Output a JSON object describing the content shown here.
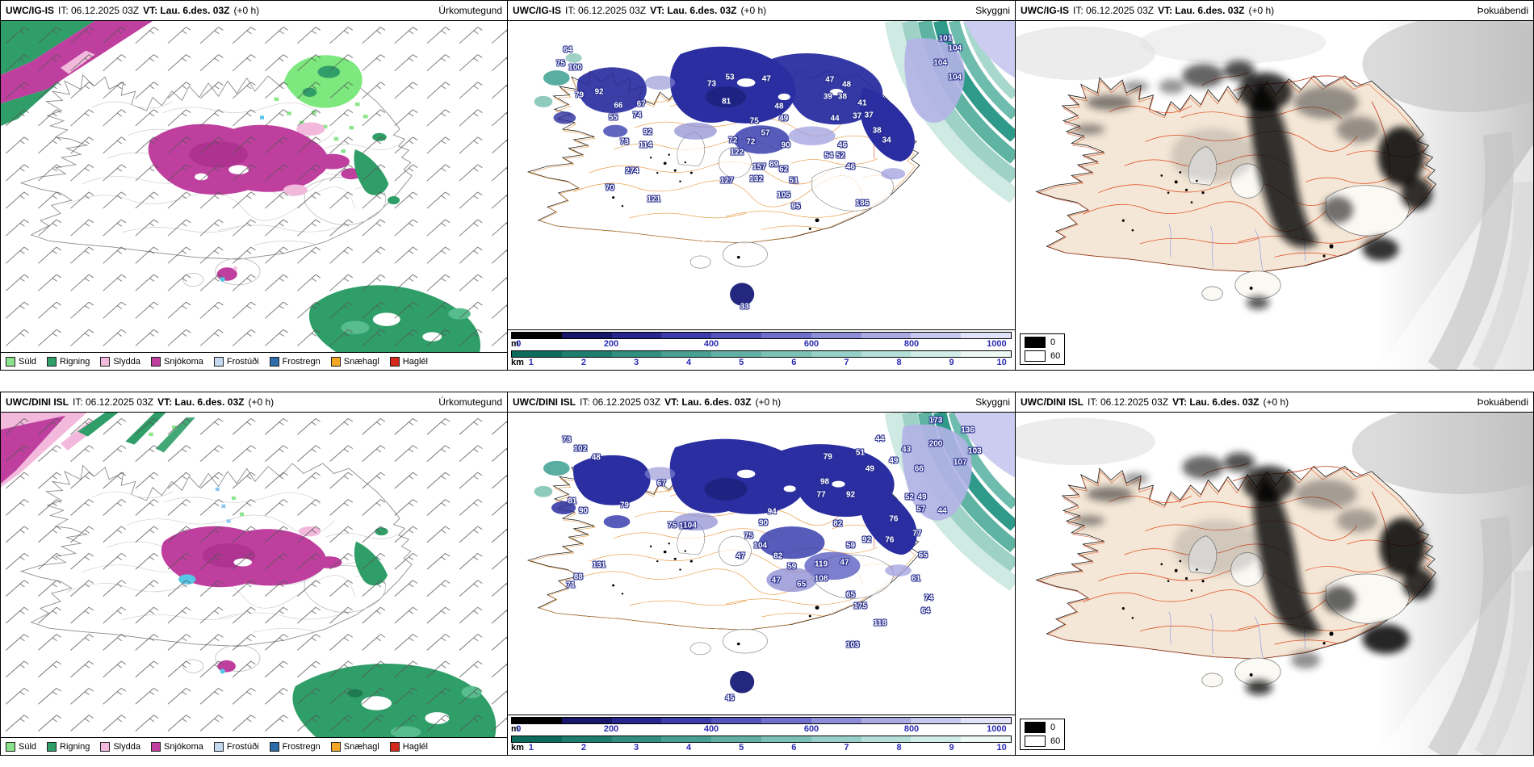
{
  "panels": [
    {
      "key": "precip-igis",
      "model": "UWC/IG-IS",
      "it_text": "IT: 06.12.2025 03Z",
      "vt_text": "VT: Lau. 6.des. 03Z",
      "offset_text": "(+0 h)",
      "product": "Úrkomutegund"
    },
    {
      "key": "vis-igis",
      "model": "UWC/IG-IS",
      "it_text": "IT: 06.12.2025 03Z",
      "vt_text": "VT: Lau. 6.des. 03Z",
      "offset_text": "(+0 h)",
      "product": "Skyggni",
      "stations": [
        [
          11.8,
          9.4,
          "64"
        ],
        [
          10.4,
          13.8,
          "75"
        ],
        [
          13.3,
          15.1,
          "100"
        ],
        [
          18.0,
          23.0,
          "92"
        ],
        [
          14.1,
          24.2,
          "79"
        ],
        [
          21.8,
          27.4,
          "66"
        ],
        [
          20.8,
          31.4,
          "55"
        ],
        [
          26.3,
          27.0,
          "67"
        ],
        [
          25.5,
          30.5,
          "74"
        ],
        [
          27.6,
          36.2,
          "92"
        ],
        [
          23.0,
          39.3,
          "73"
        ],
        [
          27.2,
          40.3,
          "114"
        ],
        [
          24.5,
          48.7,
          "274"
        ],
        [
          20.1,
          54.1,
          "70"
        ],
        [
          28.8,
          57.9,
          "121"
        ],
        [
          43.8,
          18.2,
          "53"
        ],
        [
          40.2,
          20.4,
          "73"
        ],
        [
          43.1,
          26.1,
          "81"
        ],
        [
          51.0,
          18.9,
          "47"
        ],
        [
          53.5,
          27.7,
          "48"
        ],
        [
          54.4,
          31.8,
          "49"
        ],
        [
          48.6,
          32.4,
          "75"
        ],
        [
          44.4,
          38.7,
          "72"
        ],
        [
          47.9,
          39.3,
          "72"
        ],
        [
          45.2,
          42.8,
          "122"
        ],
        [
          43.2,
          51.9,
          "127"
        ],
        [
          49.6,
          47.5,
          "157"
        ],
        [
          49.0,
          51.3,
          "132"
        ],
        [
          54.4,
          48.1,
          "62"
        ],
        [
          56.4,
          51.9,
          "51"
        ],
        [
          54.4,
          56.6,
          "105"
        ],
        [
          56.8,
          60.1,
          "95"
        ],
        [
          50.8,
          36.5,
          "57"
        ],
        [
          54.8,
          40.3,
          "90"
        ],
        [
          52.5,
          46.5,
          "89"
        ],
        [
          63.1,
          24.5,
          "39"
        ],
        [
          66.0,
          24.5,
          "38"
        ],
        [
          69.9,
          26.7,
          "41"
        ],
        [
          68.9,
          30.8,
          "37"
        ],
        [
          72.8,
          35.5,
          "38"
        ],
        [
          64.5,
          31.8,
          "44"
        ],
        [
          63.3,
          43.7,
          "54"
        ],
        [
          65.6,
          43.7,
          "52"
        ],
        [
          66.0,
          40.3,
          "46"
        ],
        [
          67.6,
          47.5,
          "46"
        ],
        [
          63.5,
          19.2,
          "47"
        ],
        [
          66.8,
          20.8,
          "48"
        ],
        [
          69.9,
          59.1,
          "186"
        ],
        [
          86.3,
          5.7,
          "101"
        ],
        [
          88.2,
          8.8,
          "104"
        ],
        [
          85.3,
          13.5,
          "104"
        ],
        [
          88.2,
          18.2,
          "104"
        ],
        [
          46.7,
          92.8,
          "33"
        ],
        [
          71.2,
          30.5,
          "37"
        ],
        [
          74.7,
          38.7,
          "34"
        ]
      ]
    },
    {
      "key": "fog-igis",
      "model": "UWC/IG-IS",
      "it_text": "IT: 06.12.2025 03Z",
      "vt_text": "VT: Lau. 6.des. 03Z",
      "offset_text": "(+0 h)",
      "product": "Þokuábendi"
    },
    {
      "key": "precip-dini",
      "model": "UWC/DINI ISL",
      "it_text": "IT: 06.12.2025 03Z",
      "vt_text": "VT: Lau. 6.des. 03Z",
      "offset_text": "(+0 h)",
      "product": "Úrkomutegund"
    },
    {
      "key": "vis-dini",
      "model": "UWC/DINI ISL",
      "it_text": "IT: 06.12.2025 03Z",
      "vt_text": "VT: Lau. 6.des. 03Z",
      "offset_text": "(+0 h)",
      "product": "Skyggni",
      "stations": [
        [
          11.6,
          9.0,
          "73"
        ],
        [
          14.3,
          11.9,
          "102"
        ],
        [
          17.4,
          15.1,
          "48"
        ],
        [
          30.3,
          23.4,
          "67"
        ],
        [
          12.7,
          29.5,
          "81"
        ],
        [
          23.0,
          30.8,
          "79"
        ],
        [
          14.9,
          32.7,
          "90"
        ],
        [
          35.1,
          37.8,
          "105"
        ],
        [
          32.4,
          37.5,
          "75"
        ],
        [
          35.9,
          37.5,
          "104"
        ],
        [
          18.0,
          50.6,
          "131"
        ],
        [
          13.9,
          54.5,
          "88"
        ],
        [
          12.4,
          57.1,
          "71"
        ],
        [
          63.1,
          14.7,
          "79"
        ],
        [
          62.5,
          23.1,
          "98"
        ],
        [
          61.8,
          27.2,
          "77"
        ],
        [
          67.6,
          27.2,
          "92"
        ],
        [
          65.1,
          36.9,
          "82"
        ],
        [
          67.6,
          44.2,
          "59"
        ],
        [
          66.4,
          49.7,
          "47"
        ],
        [
          61.8,
          50.3,
          "119"
        ],
        [
          61.8,
          55.1,
          "108"
        ],
        [
          67.6,
          60.3,
          "65"
        ],
        [
          69.5,
          64.1,
          "175"
        ],
        [
          73.4,
          69.9,
          "118"
        ],
        [
          68.0,
          76.9,
          "103"
        ],
        [
          43.8,
          94.6,
          "45"
        ],
        [
          84.4,
          2.6,
          "173"
        ],
        [
          90.7,
          5.8,
          "136"
        ],
        [
          84.4,
          10.3,
          "200"
        ],
        [
          92.1,
          12.8,
          "103"
        ],
        [
          89.2,
          16.7,
          "107"
        ],
        [
          69.5,
          13.5,
          "51"
        ],
        [
          73.4,
          8.7,
          "44"
        ],
        [
          78.6,
          12.2,
          "43"
        ],
        [
          76.1,
          16.0,
          "49"
        ],
        [
          81.1,
          18.6,
          "66"
        ],
        [
          71.4,
          18.6,
          "49"
        ],
        [
          79.2,
          28.2,
          "52"
        ],
        [
          81.7,
          28.2,
          "49"
        ],
        [
          81.5,
          32.1,
          "57"
        ],
        [
          85.7,
          32.7,
          "44"
        ],
        [
          76.1,
          35.3,
          "76"
        ],
        [
          80.7,
          40.1,
          "77"
        ],
        [
          75.3,
          42.3,
          "76"
        ],
        [
          81.9,
          47.4,
          "65"
        ],
        [
          80.5,
          55.1,
          "61"
        ],
        [
          83.0,
          61.5,
          "74"
        ],
        [
          82.4,
          65.7,
          "64"
        ],
        [
          70.8,
          42.3,
          "92"
        ],
        [
          52.1,
          33.0,
          "94"
        ],
        [
          50.4,
          36.5,
          "90"
        ],
        [
          47.5,
          41.0,
          "75"
        ],
        [
          49.8,
          44.0,
          "104"
        ],
        [
          53.3,
          47.6,
          "82"
        ],
        [
          56.0,
          51.0,
          "59"
        ],
        [
          45.9,
          47.5,
          "47"
        ],
        [
          52.9,
          55.5,
          "47"
        ],
        [
          57.9,
          57.0,
          "65"
        ]
      ]
    },
    {
      "key": "fog-dini",
      "model": "UWC/DINI ISL",
      "it_text": "IT: 06.12.2025 03Z",
      "vt_text": "VT: Lau. 6.des. 03Z",
      "offset_text": "(+0 h)",
      "product": "Þokuábendi"
    }
  ],
  "precip_legend": {
    "items": [
      {
        "label": "Súld",
        "color": "#8be08b"
      },
      {
        "label": "Rigning",
        "color": "#2f9e68"
      },
      {
        "label": "Slydda",
        "color": "#f2b9dc"
      },
      {
        "label": "Snjókoma",
        "color": "#bf3f9f"
      },
      {
        "label": "Frostúði",
        "color": "#c3d9f2"
      },
      {
        "label": "Frostregn",
        "color": "#2d6ca8"
      },
      {
        "label": "Snæhagl",
        "color": "#f5a627"
      },
      {
        "label": "Haglél",
        "color": "#d42a1c"
      }
    ]
  },
  "visibility_scale": {
    "m": {
      "label": "m",
      "colors": [
        "#000000",
        "#16166b",
        "#26268c",
        "#3c3caa",
        "#5454bc",
        "#7070cc",
        "#8d8dd8",
        "#ababe4",
        "#c7c7ef",
        "#e2e2f8"
      ],
      "ticks": [
        {
          "t": "0",
          "p": 1.5
        },
        {
          "t": "200",
          "p": 20
        },
        {
          "t": "400",
          "p": 40
        },
        {
          "t": "600",
          "p": 60
        },
        {
          "t": "800",
          "p": 80
        },
        {
          "t": "1000",
          "p": 97
        }
      ]
    },
    "km": {
      "label": "km",
      "colors": [
        "#0b6b5c",
        "#1d7d6e",
        "#318f80",
        "#47a092",
        "#60b1a4",
        "#7bc1b6",
        "#97d0c8",
        "#b5dfd9",
        "#d2ece8",
        "#edf8f5"
      ],
      "ticks": [
        {
          "t": "1",
          "p": 4
        },
        {
          "t": "2",
          "p": 14.5
        },
        {
          "t": "3",
          "p": 25
        },
        {
          "t": "4",
          "p": 35.5
        },
        {
          "t": "5",
          "p": 46
        },
        {
          "t": "6",
          "p": 56.5
        },
        {
          "t": "7",
          "p": 67
        },
        {
          "t": "8",
          "p": 77.5
        },
        {
          "t": "9",
          "p": 88
        },
        {
          "t": "10",
          "p": 98
        }
      ]
    }
  },
  "fog_legend": {
    "items": [
      {
        "label": "0",
        "color": "#000000"
      },
      {
        "label": "60",
        "color": "#ffffff"
      }
    ]
  }
}
